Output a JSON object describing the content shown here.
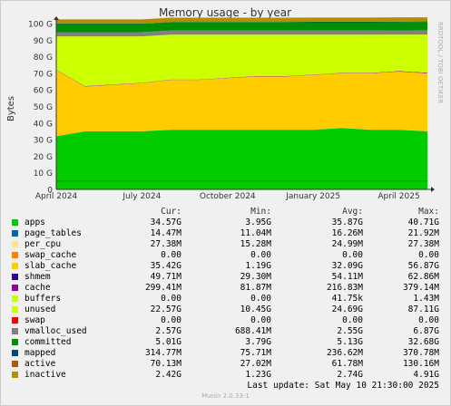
{
  "chart_data": {
    "type": "area",
    "title": "Memory usage - by year",
    "ylabel": "Bytes",
    "side_label": "RRDTOOL / TOBI OETIKER",
    "ylim": [
      0,
      100
    ],
    "y_unit": "G",
    "y_ticks": [
      "0",
      "10 G",
      "20 G",
      "30 G",
      "40 G",
      "50 G",
      "60 G",
      "70 G",
      "80 G",
      "90 G",
      "100 G"
    ],
    "x_ticks": [
      "April 2024",
      "July 2024",
      "October 2024",
      "January 2025",
      "April 2025"
    ],
    "x_months": [
      "2024-04",
      "2024-05",
      "2024-06",
      "2024-07",
      "2024-08",
      "2024-09",
      "2024-10",
      "2024-11",
      "2024-12",
      "2025-01",
      "2025-02",
      "2025-03",
      "2025-04",
      "2025-05"
    ],
    "grid": true,
    "stacked": true,
    "series": [
      {
        "name": "apps",
        "color": "#00cc00",
        "values": [
          32,
          35,
          35,
          35,
          36,
          36,
          36,
          36,
          36,
          36,
          37,
          36,
          36,
          35
        ]
      },
      {
        "name": "page_tables",
        "color": "#0066b3",
        "values": [
          0.015,
          0.016,
          0.016,
          0.016,
          0.016,
          0.016,
          0.016,
          0.016,
          0.016,
          0.016,
          0.016,
          0.016,
          0.016,
          0.015
        ]
      },
      {
        "name": "per_cpu",
        "color": "#ffe38b",
        "values": [
          0.025,
          0.025,
          0.025,
          0.025,
          0.025,
          0.025,
          0.025,
          0.025,
          0.025,
          0.025,
          0.025,
          0.025,
          0.025,
          0.027
        ]
      },
      {
        "name": "swap_cache",
        "color": "#ff8000",
        "values": [
          0,
          0,
          0,
          0,
          0,
          0,
          0,
          0,
          0,
          0,
          0,
          0,
          0,
          0
        ]
      },
      {
        "name": "slab_cache",
        "color": "#ffcc00",
        "values": [
          40,
          27,
          28,
          29,
          30,
          30,
          31,
          32,
          32,
          33,
          33,
          34,
          35,
          35
        ]
      },
      {
        "name": "shmem",
        "color": "#330099",
        "values": [
          0.05,
          0.05,
          0.05,
          0.05,
          0.05,
          0.05,
          0.05,
          0.05,
          0.05,
          0.05,
          0.05,
          0.05,
          0.05,
          0.05
        ]
      },
      {
        "name": "cache",
        "color": "#990099",
        "values": [
          0.2,
          0.2,
          0.2,
          0.2,
          0.2,
          0.2,
          0.2,
          0.2,
          0.2,
          0.2,
          0.2,
          0.2,
          0.3,
          0.3
        ]
      },
      {
        "name": "buffers",
        "color": "#ccff00",
        "values": [
          0,
          0,
          0,
          0,
          0,
          0,
          0,
          0,
          0,
          0,
          0,
          0,
          0,
          0
        ]
      },
      {
        "name": "unused",
        "color": "#ccff00",
        "values": [
          20,
          30,
          29,
          28,
          27,
          27,
          26,
          25,
          25,
          24,
          23,
          23,
          22,
          23
        ]
      },
      {
        "name": "swap",
        "color": "#ff0000",
        "values": [
          0,
          0,
          0,
          0,
          0,
          0,
          0,
          0,
          0,
          0,
          0,
          0,
          0,
          0
        ]
      },
      {
        "name": "vmalloc_used",
        "color": "#808080",
        "values": [
          2.5,
          2.5,
          2.5,
          2.5,
          2.5,
          2.5,
          2.5,
          2.5,
          2.5,
          2.5,
          2.5,
          2.5,
          2.5,
          2.6
        ]
      },
      {
        "name": "committed",
        "color": "#008f00",
        "values": [
          5,
          5,
          5,
          5,
          5,
          5,
          5,
          5,
          5,
          5,
          5,
          5,
          5,
          5
        ]
      },
      {
        "name": "mapped",
        "color": "#00487d",
        "values": [
          0.2,
          0.2,
          0.2,
          0.2,
          0.2,
          0.2,
          0.2,
          0.2,
          0.2,
          0.3,
          0.3,
          0.3,
          0.3,
          0.3
        ]
      },
      {
        "name": "active",
        "color": "#b35a00",
        "values": [
          0.06,
          0.06,
          0.06,
          0.06,
          0.06,
          0.06,
          0.06,
          0.06,
          0.06,
          0.06,
          0.06,
          0.06,
          0.07,
          0.07
        ]
      },
      {
        "name": "inactive",
        "color": "#b38f00",
        "values": [
          2.5,
          2.5,
          2.5,
          2.5,
          2.5,
          2.5,
          2.5,
          2.5,
          2.5,
          2.5,
          2.5,
          2.5,
          2.5,
          2.4
        ]
      }
    ]
  },
  "legend": {
    "headers": {
      "cur": "Cur:",
      "min": "Min:",
      "avg": "Avg:",
      "max": "Max:"
    },
    "rows": [
      {
        "name": "apps",
        "color": "#00cc00",
        "cur": "34.57G",
        "min": "3.95G",
        "avg": "35.87G",
        "max": "40.71G"
      },
      {
        "name": "page_tables",
        "color": "#0066b3",
        "cur": "14.47M",
        "min": "11.04M",
        "avg": "16.26M",
        "max": "21.92M"
      },
      {
        "name": "per_cpu",
        "color": "#ffe38b",
        "cur": "27.38M",
        "min": "15.28M",
        "avg": "24.99M",
        "max": "27.38M"
      },
      {
        "name": "swap_cache",
        "color": "#ff8000",
        "cur": "0.00",
        "min": "0.00",
        "avg": "0.00",
        "max": "0.00"
      },
      {
        "name": "slab_cache",
        "color": "#ffcc00",
        "cur": "35.42G",
        "min": "1.19G",
        "avg": "32.09G",
        "max": "56.87G"
      },
      {
        "name": "shmem",
        "color": "#330099",
        "cur": "49.71M",
        "min": "29.30M",
        "avg": "54.11M",
        "max": "62.86M"
      },
      {
        "name": "cache",
        "color": "#990099",
        "cur": "299.41M",
        "min": "81.87M",
        "avg": "216.83M",
        "max": "379.14M"
      },
      {
        "name": "buffers",
        "color": "#ccff00",
        "cur": "0.00",
        "min": "0.00",
        "avg": "41.75k",
        "max": "1.43M"
      },
      {
        "name": "unused",
        "color": "#ccff00",
        "cur": "22.57G",
        "min": "10.45G",
        "avg": "24.69G",
        "max": "87.11G"
      },
      {
        "name": "swap",
        "color": "#ff0000",
        "cur": "0.00",
        "min": "0.00",
        "avg": "0.00",
        "max": "0.00"
      },
      {
        "name": "vmalloc_used",
        "color": "#808080",
        "cur": "2.57G",
        "min": "688.41M",
        "avg": "2.55G",
        "max": "6.87G"
      },
      {
        "name": "committed",
        "color": "#008f00",
        "cur": "5.01G",
        "min": "3.79G",
        "avg": "5.13G",
        "max": "32.68G"
      },
      {
        "name": "mapped",
        "color": "#00487d",
        "cur": "314.77M",
        "min": "75.71M",
        "avg": "236.62M",
        "max": "370.78M"
      },
      {
        "name": "active",
        "color": "#b35a00",
        "cur": "70.13M",
        "min": "27.02M",
        "avg": "61.78M",
        "max": "130.16M"
      },
      {
        "name": "inactive",
        "color": "#b38f00",
        "cur": "2.42G",
        "min": "1.23G",
        "avg": "2.74G",
        "max": "4.91G"
      }
    ]
  },
  "last_update": "Last update:  Sat May 10 21:30:00 2025",
  "footer": "Munin 2.0.33-1"
}
